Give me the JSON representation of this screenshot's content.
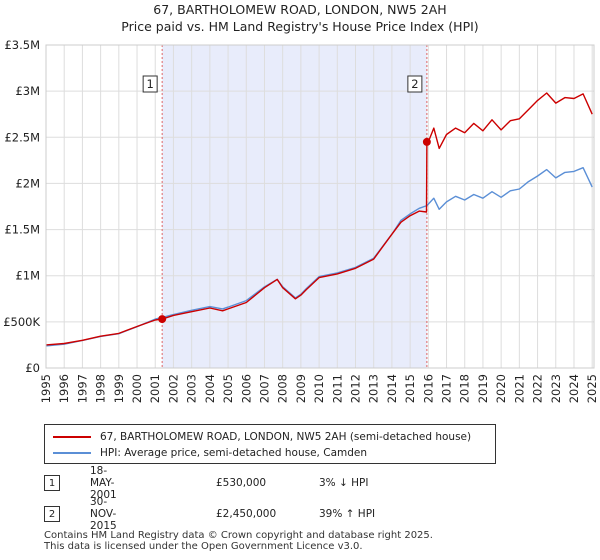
{
  "chart_data": {
    "type": "line",
    "title": "67, BARTHOLOMEW ROAD, LONDON, NW5 2AH",
    "subtitle": "Price paid vs. HM Land Registry's House Price Index (HPI)",
    "xlabel": "",
    "ylabel": "",
    "xlim": [
      1995,
      2025.1
    ],
    "ylim": [
      0,
      3500000
    ],
    "y_ticks": [
      0,
      500000,
      1000000,
      1500000,
      2000000,
      2500000,
      3000000,
      3500000
    ],
    "y_tick_labels": [
      "£0",
      "£500K",
      "£1M",
      "£1.5M",
      "£2M",
      "£2.5M",
      "£3M",
      "£3.5M"
    ],
    "x_ticks": [
      1995,
      1996,
      1997,
      1998,
      1999,
      2000,
      2001,
      2002,
      2003,
      2004,
      2005,
      2006,
      2007,
      2008,
      2009,
      2010,
      2011,
      2012,
      2013,
      2014,
      2015,
      2016,
      2017,
      2018,
      2019,
      2020,
      2021,
      2022,
      2023,
      2024,
      2025
    ],
    "grid": true,
    "shaded_period": [
      2001.38,
      2015.92
    ],
    "series": [
      {
        "name": "67, BARTHOLOMEW ROAD, LONDON, NW5 2AH (semi-detached house)",
        "color": "#cc0000",
        "x": [
          1995.0,
          1996.0,
          1997.0,
          1998.0,
          1999.0,
          2000.0,
          2001.0,
          2001.38,
          2002.0,
          2003.0,
          2004.0,
          2004.7,
          2005.0,
          2006.0,
          2007.0,
          2007.7,
          2008.0,
          2008.7,
          2009.0,
          2009.3,
          2010.0,
          2011.0,
          2012.0,
          2013.0,
          2014.0,
          2014.5,
          2015.0,
          2015.5,
          2015.9,
          2015.92,
          2016.0,
          2016.3,
          2016.6,
          2017.0,
          2017.5,
          2018.0,
          2018.5,
          2019.0,
          2019.5,
          2020.0,
          2020.5,
          2021.0,
          2021.5,
          2022.0,
          2022.5,
          2023.0,
          2023.5,
          2024.0,
          2024.5,
          2025.0
        ],
        "y": [
          250000,
          265000,
          300000,
          345000,
          375000,
          450000,
          520000,
          530000,
          570000,
          610000,
          650000,
          620000,
          640000,
          710000,
          870000,
          960000,
          870000,
          750000,
          790000,
          850000,
          980000,
          1020000,
          1080000,
          1180000,
          1450000,
          1580000,
          1650000,
          1700000,
          1690000,
          2450000,
          2450000,
          2600000,
          2380000,
          2530000,
          2600000,
          2550000,
          2650000,
          2570000,
          2690000,
          2580000,
          2680000,
          2700000,
          2800000,
          2900000,
          2980000,
          2870000,
          2930000,
          2920000,
          2970000,
          2750000
        ]
      },
      {
        "name": "HPI: Average price, semi-detached house, Camden",
        "color": "#5b8fd6",
        "x": [
          1995.0,
          1996.0,
          1997.0,
          1998.0,
          1999.0,
          2000.0,
          2001.0,
          2001.38,
          2002.0,
          2003.0,
          2004.0,
          2004.7,
          2005.0,
          2006.0,
          2007.0,
          2007.7,
          2008.0,
          2008.7,
          2009.0,
          2009.3,
          2010.0,
          2011.0,
          2012.0,
          2013.0,
          2014.0,
          2014.5,
          2015.0,
          2015.5,
          2015.92,
          2016.3,
          2016.6,
          2017.0,
          2017.5,
          2018.0,
          2018.5,
          2019.0,
          2019.5,
          2020.0,
          2020.5,
          2021.0,
          2021.5,
          2022.0,
          2022.5,
          2023.0,
          2023.5,
          2024.0,
          2024.5,
          2025.0
        ],
        "y": [
          240000,
          258000,
          298000,
          342000,
          372000,
          448000,
          530000,
          548000,
          580000,
          625000,
          665000,
          640000,
          660000,
          730000,
          880000,
          960000,
          880000,
          760000,
          800000,
          860000,
          990000,
          1030000,
          1090000,
          1190000,
          1450000,
          1600000,
          1670000,
          1730000,
          1760000,
          1840000,
          1720000,
          1800000,
          1860000,
          1820000,
          1880000,
          1840000,
          1910000,
          1850000,
          1920000,
          1940000,
          2020000,
          2080000,
          2150000,
          2060000,
          2120000,
          2130000,
          2170000,
          1960000
        ]
      }
    ],
    "sales": [
      {
        "marker": "1",
        "x": 2001.38,
        "y": 530000,
        "date": "18-MAY-2001",
        "price": "£530,000",
        "hpi": "3% ↓ HPI"
      },
      {
        "marker": "2",
        "x": 2015.92,
        "y": 2450000,
        "date": "30-NOV-2015",
        "price": "£2,450,000",
        "hpi": "39% ↑ HPI"
      }
    ]
  },
  "legend": {
    "property_label": "67, BARTHOLOMEW ROAD, LONDON, NW5 2AH (semi-detached house)",
    "hpi_label": "HPI: Average price, semi-detached house, Camden"
  },
  "footer": {
    "line1": "Contains HM Land Registry data © Crown copyright and database right 2025.",
    "line2": "This data is licensed under the Open Government Licence v3.0."
  }
}
